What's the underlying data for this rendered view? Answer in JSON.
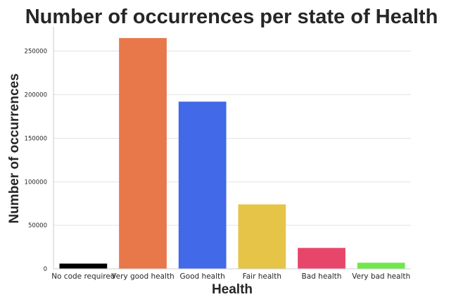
{
  "chart_data": {
    "type": "bar",
    "title": "Number of occurrences per state of Health",
    "xlabel": "Health",
    "ylabel": "Number of occurrences",
    "categories": [
      "No code required",
      "Very good health",
      "Good health",
      "Fair health",
      "Bad health",
      "Very bad health"
    ],
    "values": [
      6000,
      265000,
      192000,
      74000,
      24000,
      7000
    ],
    "colors": [
      "#000000",
      "#e8774a",
      "#4169e8",
      "#e6c447",
      "#e8456b",
      "#6ee84a"
    ],
    "ylim": [
      0,
      278000
    ],
    "yticks": [
      0,
      50000,
      100000,
      150000,
      200000,
      250000
    ],
    "grid": true,
    "legend": "none"
  }
}
